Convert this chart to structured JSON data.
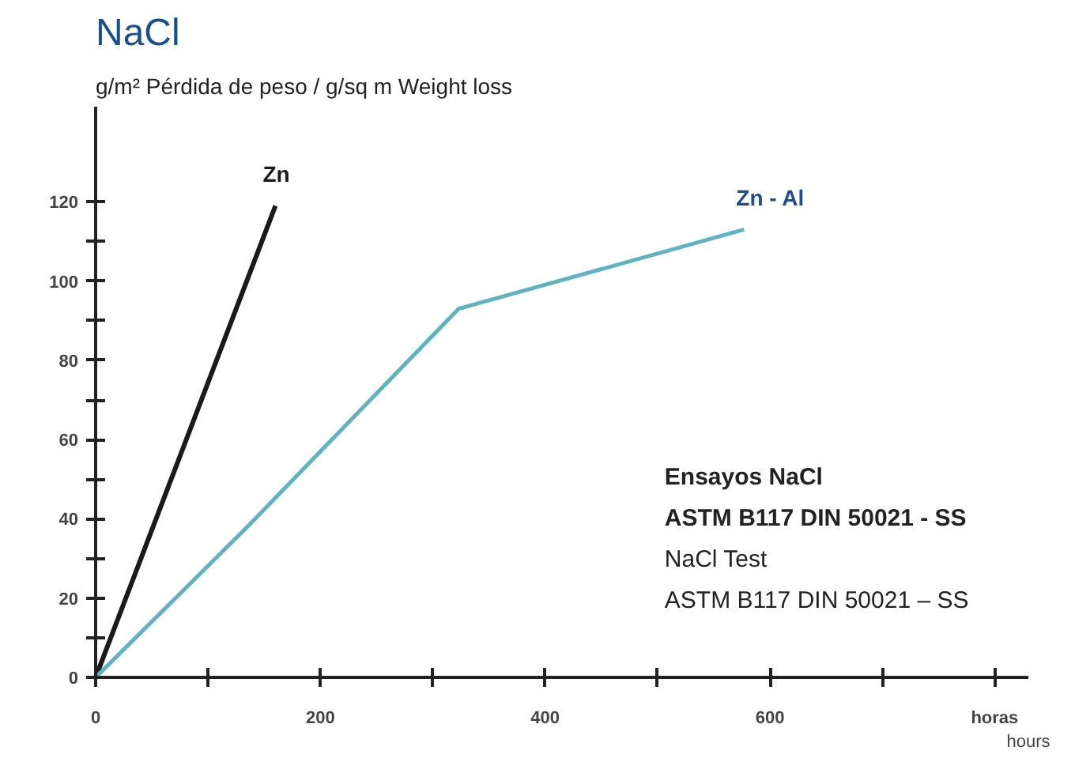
{
  "chart_data": {
    "type": "line",
    "title": "NaCl",
    "ylabel": "g/m² Pérdida de peso / g/sq m Weight loss",
    "xlabel": "hours",
    "series": [
      {
        "name": "Zn",
        "color": "#1a1a1a",
        "x": [
          0,
          160
        ],
        "values": [
          0,
          119
        ]
      },
      {
        "name": "Zn - Al",
        "color": "#5fb3bf",
        "x": [
          0,
          135,
          323,
          577
        ],
        "values": [
          0,
          38,
          93,
          113
        ]
      }
    ],
    "xlim": [
      0,
      830
    ],
    "ylim": [
      0,
      144
    ],
    "xticks": [
      0,
      {
        "value": 100,
        "label": null
      },
      200,
      {
        "value": 300,
        "label": null
      },
      400,
      {
        "value": 500,
        "label": null
      },
      600,
      {
        "value": 700,
        "label": null
      },
      {
        "value": 800,
        "label": "horas"
      }
    ],
    "yticks": [
      0,
      {
        "value": 10,
        "label": null
      },
      20,
      {
        "value": 30,
        "label": null
      },
      40,
      {
        "value": 50,
        "label": null
      },
      60,
      {
        "value": 70,
        "label": null
      },
      80,
      {
        "value": 90,
        "label": null
      },
      100,
      {
        "value": 110,
        "label": null
      },
      120
    ],
    "annotations": [
      "Ensayos NaCl",
      "ASTM B117 DIN 50021 - SS",
      "NaCl Test",
      "ASTM B117 DIN 50021 – SS"
    ],
    "grid": false,
    "line_style": "solid"
  }
}
